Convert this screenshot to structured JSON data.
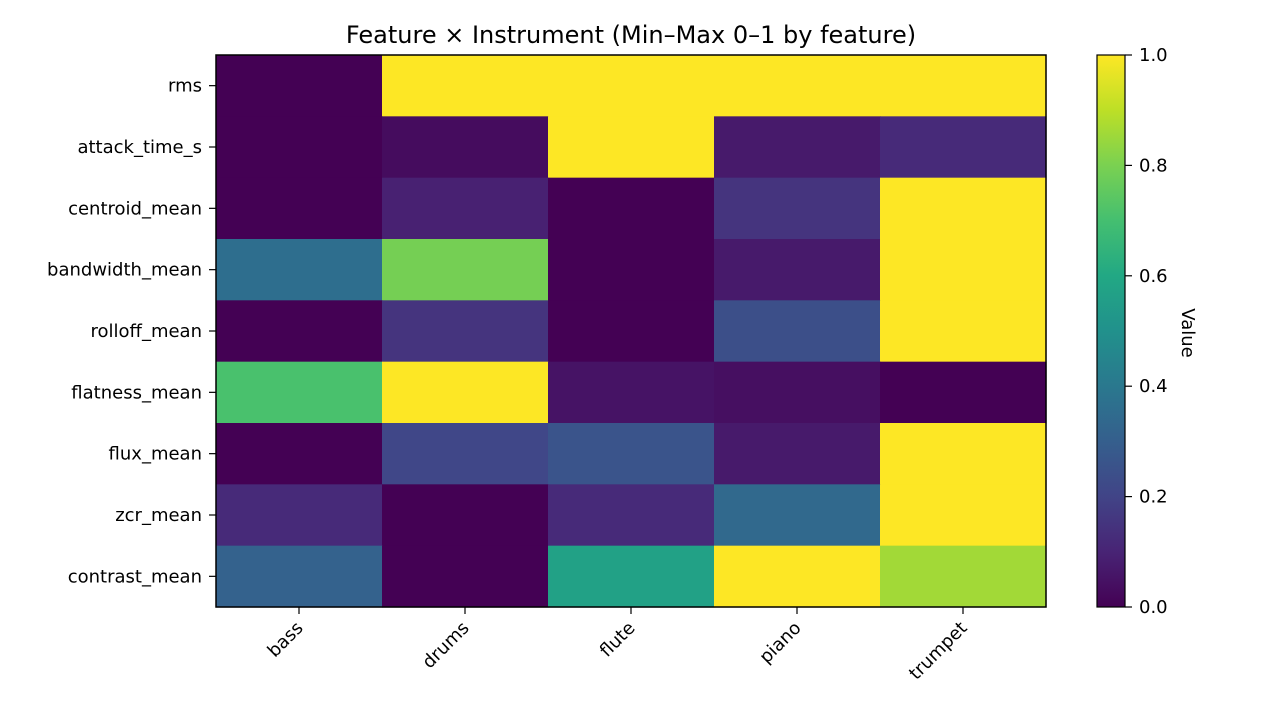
{
  "chart_data": {
    "type": "heatmap",
    "title": "Feature × Instrument (Min–Max 0–1 by feature)",
    "x_categories": [
      "bass",
      "drums",
      "flute",
      "piano",
      "trumpet"
    ],
    "y_categories": [
      "rms",
      "attack_time_s",
      "centroid_mean",
      "bandwidth_mean",
      "rolloff_mean",
      "flatness_mean",
      "flux_mean",
      "zcr_mean",
      "contrast_mean"
    ],
    "values": [
      [
        0.0,
        1.0,
        1.0,
        1.0,
        1.0
      ],
      [
        0.0,
        0.03,
        1.0,
        0.07,
        0.12
      ],
      [
        0.0,
        0.09,
        0.0,
        0.15,
        1.0
      ],
      [
        0.36,
        0.79,
        0.0,
        0.07,
        1.0
      ],
      [
        0.0,
        0.15,
        0.0,
        0.24,
        1.0
      ],
      [
        0.71,
        1.0,
        0.05,
        0.04,
        0.0
      ],
      [
        0.0,
        0.21,
        0.26,
        0.07,
        1.0
      ],
      [
        0.12,
        0.0,
        0.12,
        0.34,
        1.0
      ],
      [
        0.31,
        0.0,
        0.57,
        1.0,
        0.86
      ]
    ],
    "colormap": "viridis",
    "colorbar": {
      "label": "Value",
      "range": [
        0,
        1
      ],
      "ticks": [
        "0.0",
        "0.2",
        "0.4",
        "0.6",
        "0.8",
        "1.0"
      ]
    },
    "xlabel": "",
    "ylabel": "",
    "grid": false
  }
}
